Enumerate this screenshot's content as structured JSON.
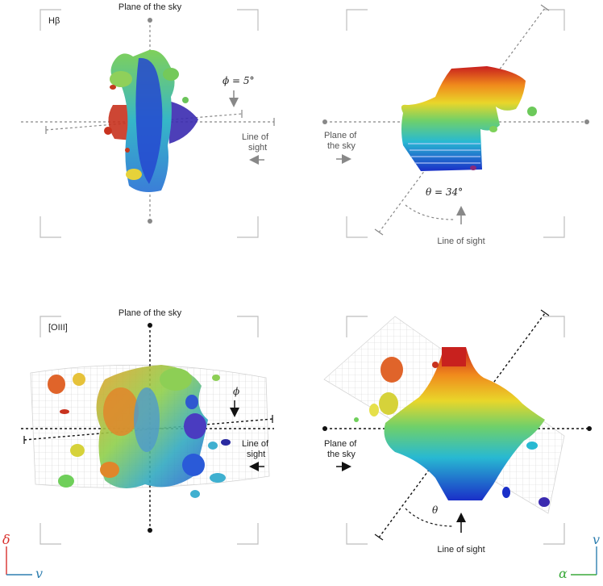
{
  "panels": {
    "hbeta_front": {
      "tag": "Hβ",
      "plane_label": "Plane of the sky",
      "angle_label": "ϕ = 5°",
      "sight_label_line1": "Line of",
      "sight_label_line2": "sight"
    },
    "hbeta_side": {
      "plane_label_line1": "Plane of",
      "plane_label_line2": "the sky",
      "angle_label": "θ = 34°",
      "sight_label": "Line of sight"
    },
    "oiii_front": {
      "tag": "[OIII]",
      "plane_label": "Plane of the sky",
      "angle_label": "ϕ",
      "sight_label_line1": "Line of",
      "sight_label_line2": "sight"
    },
    "oiii_side": {
      "plane_label_line1": "Plane of",
      "plane_label_line2": "the sky",
      "angle_label": "θ",
      "sight_label": "Line of sight"
    }
  },
  "axes_left": {
    "vertical": "δ",
    "horizontal": "v"
  },
  "axes_right": {
    "vertical": "v",
    "horizontal": "α"
  },
  "colors": {
    "delta_axis": "#d9302c",
    "v_axis": "#2f7fb0",
    "alpha_axis": "#3caa3c",
    "guide_grey": "#888888",
    "guide_black": "#111111"
  }
}
